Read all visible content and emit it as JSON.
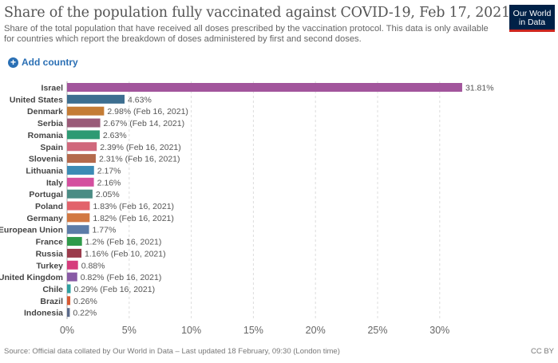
{
  "title": "Share of the population fully vaccinated against COVID-19, Feb 17, 2021",
  "subtitle": "Share of the total population that have received all doses prescribed by the vaccination protocol. This data is only available for countries which report the breakdown of doses administered by first and second doses.",
  "logo": {
    "line1": "Our World",
    "line2": "in Data"
  },
  "add_country_label": "Add country",
  "footer": {
    "source": "Source: Official data collated by Our World in Data – Last updated 18 February, 09:30 (London time)",
    "license": "CC BY"
  },
  "chart_data": {
    "type": "bar",
    "orientation": "horizontal",
    "xlim": [
      0,
      32
    ],
    "x_ticks": [
      "0%",
      "5%",
      "10%",
      "15%",
      "20%",
      "25%",
      "30%"
    ],
    "x_tick_values": [
      0,
      5,
      10,
      15,
      20,
      25,
      30
    ],
    "grid": true,
    "categories": [
      "Israel",
      "United States",
      "Denmark",
      "Serbia",
      "Romania",
      "Spain",
      "Slovenia",
      "Lithuania",
      "Italy",
      "Portugal",
      "Poland",
      "Germany",
      "European Union",
      "France",
      "Russia",
      "Turkey",
      "United Kingdom",
      "Chile",
      "Brazil",
      "Indonesia"
    ],
    "values": [
      31.81,
      4.63,
      2.98,
      2.67,
      2.63,
      2.39,
      2.31,
      2.17,
      2.16,
      2.05,
      1.83,
      1.82,
      1.77,
      1.2,
      1.16,
      0.88,
      0.82,
      0.29,
      0.26,
      0.22
    ],
    "labels": [
      "31.81%",
      "4.63%",
      "2.98%",
      "2.67%",
      "2.63%",
      "2.39%",
      "2.31%",
      "2.17%",
      "2.16%",
      "2.05%",
      "1.83%",
      "1.82%",
      "1.77%",
      "1.2%",
      "1.16%",
      "0.88%",
      "0.82%",
      "0.29%",
      "0.26%",
      "0.22%"
    ],
    "notes": [
      "",
      "",
      "(Feb 16, 2021)",
      "(Feb 14, 2021)",
      "",
      "(Feb 16, 2021)",
      "(Feb 16, 2021)",
      "",
      "",
      "",
      "(Feb 16, 2021)",
      "(Feb 16, 2021)",
      "",
      "(Feb 16, 2021)",
      "(Feb 10, 2021)",
      "",
      "(Feb 16, 2021)",
      "(Feb 16, 2021)",
      "",
      ""
    ],
    "colors": [
      "#a2559c",
      "#3c6e90",
      "#c47c35",
      "#9a5a78",
      "#2d9a73",
      "#d0687c",
      "#b46a4c",
      "#3b8bb5",
      "#d44f9f",
      "#4a8c84",
      "#e2636b",
      "#d27842",
      "#5c7ca8",
      "#2f9a4a",
      "#9b3b4c",
      "#d63c7c",
      "#885aa5",
      "#2fa0a0",
      "#d85a33",
      "#5b6a8a"
    ]
  }
}
